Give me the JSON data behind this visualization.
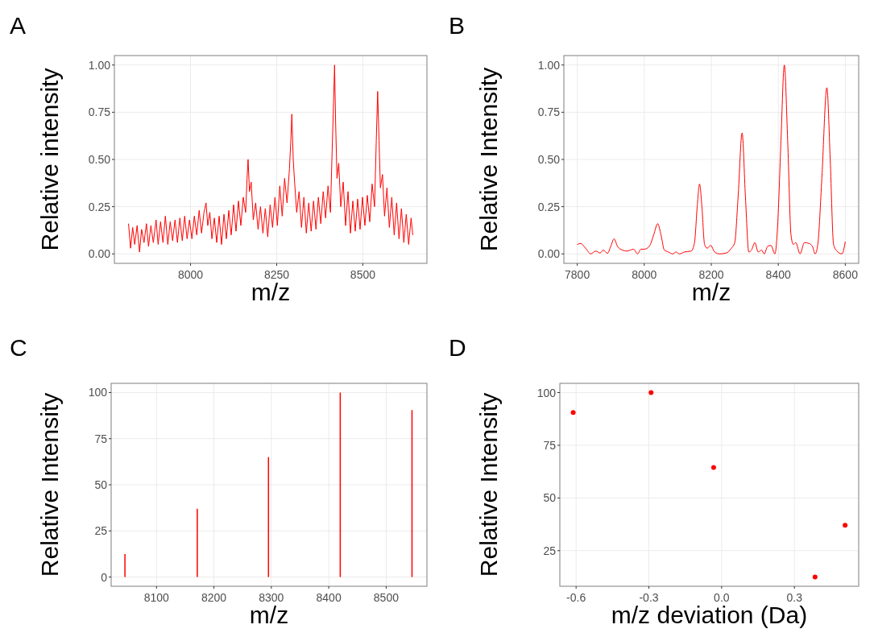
{
  "chart_data": [
    {
      "type": "line",
      "title": "A",
      "xlabel": "m/z",
      "ylabel": "Relative intensity",
      "grid": true,
      "xlim": [
        7779,
        8686
      ],
      "xticks": [
        8000,
        8250,
        8500
      ],
      "ylim": [
        -0.05,
        1.05
      ],
      "yticks": [
        {
          "value": 0,
          "label": "0.00"
        },
        {
          "value": 0.25,
          "label": "0.25"
        },
        {
          "value": 0.5,
          "label": "0.50"
        },
        {
          "value": 0.75,
          "label": "0.75"
        },
        {
          "value": 1,
          "label": "1.00"
        }
      ],
      "series": [
        {
          "color": "#ff0000",
          "x": [
            7820,
            7826,
            7832,
            7838,
            7845,
            7852,
            7858,
            7865,
            7872,
            7878,
            7885,
            7892,
            7900,
            7906,
            7913,
            7920,
            7927,
            7934,
            7941,
            7948,
            7955,
            7962,
            7969,
            7976,
            7983,
            7990,
            7997,
            8004,
            8011,
            8018,
            8025,
            8032,
            8039,
            8045,
            8050,
            8056,
            8062,
            8069,
            8076,
            8083,
            8090,
            8097,
            8104,
            8111,
            8118,
            8125,
            8132,
            8139,
            8146,
            8153,
            8160,
            8164,
            8167,
            8171,
            8176,
            8182,
            8189,
            8196,
            8203,
            8210,
            8217,
            8224,
            8231,
            8238,
            8245,
            8252,
            8259,
            8266,
            8273,
            8280,
            8287,
            8291,
            8294,
            8298,
            8302,
            8308,
            8315,
            8322,
            8329,
            8336,
            8343,
            8350,
            8357,
            8364,
            8371,
            8378,
            8385,
            8392,
            8399,
            8406,
            8411,
            8415,
            8418,
            8421,
            8425,
            8430,
            8436,
            8443,
            8450,
            8457,
            8464,
            8471,
            8478,
            8485,
            8492,
            8499,
            8506,
            8513,
            8520,
            8527,
            8534,
            8539,
            8543,
            8547,
            8551,
            8557,
            8563,
            8570,
            8577,
            8584,
            8591,
            8598,
            8605,
            8612,
            8619,
            8626,
            8633,
            8640,
            8645
          ],
          "values": [
            0.16,
            0.03,
            0.14,
            0.05,
            0.15,
            0.01,
            0.13,
            0.06,
            0.16,
            0.04,
            0.15,
            0.06,
            0.18,
            0.05,
            0.17,
            0.06,
            0.2,
            0.05,
            0.17,
            0.07,
            0.18,
            0.06,
            0.19,
            0.07,
            0.2,
            0.08,
            0.18,
            0.08,
            0.2,
            0.1,
            0.23,
            0.11,
            0.22,
            0.27,
            0.15,
            0.22,
            0.08,
            0.19,
            0.06,
            0.2,
            0.05,
            0.21,
            0.08,
            0.23,
            0.1,
            0.26,
            0.12,
            0.28,
            0.15,
            0.3,
            0.22,
            0.4,
            0.5,
            0.33,
            0.38,
            0.18,
            0.27,
            0.13,
            0.25,
            0.11,
            0.24,
            0.09,
            0.26,
            0.14,
            0.3,
            0.15,
            0.36,
            0.2,
            0.4,
            0.27,
            0.45,
            0.6,
            0.74,
            0.5,
            0.38,
            0.22,
            0.33,
            0.14,
            0.3,
            0.11,
            0.27,
            0.12,
            0.28,
            0.13,
            0.3,
            0.16,
            0.33,
            0.19,
            0.36,
            0.22,
            0.55,
            0.8,
            1.0,
            0.7,
            0.4,
            0.48,
            0.25,
            0.38,
            0.15,
            0.33,
            0.11,
            0.28,
            0.12,
            0.29,
            0.13,
            0.3,
            0.15,
            0.31,
            0.17,
            0.37,
            0.25,
            0.6,
            0.86,
            0.6,
            0.35,
            0.42,
            0.2,
            0.35,
            0.14,
            0.3,
            0.1,
            0.27,
            0.08,
            0.24,
            0.06,
            0.21,
            0.05,
            0.19,
            0.1
          ]
        }
      ]
    },
    {
      "type": "line",
      "title": "B",
      "xlabel": "m/z",
      "ylabel": "Relative Intensity",
      "grid": true,
      "xlim": [
        7760,
        8640
      ],
      "xticks": [
        7800,
        8000,
        8200,
        8400,
        8600
      ],
      "ylim": [
        -0.05,
        1.05
      ],
      "yticks": [
        {
          "value": 0,
          "label": "0.00"
        },
        {
          "value": 0.25,
          "label": "0.25"
        },
        {
          "value": 0.5,
          "label": "0.50"
        },
        {
          "value": 0.75,
          "label": "0.75"
        },
        {
          "value": 1,
          "label": "1.00"
        }
      ],
      "series": [
        {
          "color": "#ff0000",
          "x": [
            7800,
            7810,
            7825,
            7840,
            7855,
            7868,
            7878,
            7890,
            7900,
            7910,
            7920,
            7935,
            7948,
            7958,
            7968,
            7980,
            7990,
            8000,
            8015,
            8028,
            8040,
            8050,
            8060,
            8072,
            8085,
            8095,
            8105,
            8120,
            8140,
            8150,
            8158,
            8165,
            8172,
            8180,
            8188,
            8198,
            8210,
            8225,
            8245,
            8260,
            8270,
            8280,
            8292,
            8302,
            8312,
            8320,
            8330,
            8340,
            8350,
            8358,
            8368,
            8378,
            8390,
            8398,
            8408,
            8418,
            8428,
            8438,
            8445,
            8452,
            8465,
            8478,
            8492,
            8502,
            8510,
            8518,
            8530,
            8545,
            8555,
            8565,
            8575,
            8590,
            8600
          ],
          "values": [
            0.05,
            0.055,
            0.03,
            0.0,
            0.015,
            0.005,
            0.02,
            0.003,
            0.04,
            0.08,
            0.04,
            0.02,
            0.015,
            0.02,
            0.025,
            0.0,
            0.025,
            0.025,
            0.04,
            0.1,
            0.16,
            0.1,
            0.02,
            0.01,
            0.0,
            0.01,
            0.0,
            0.01,
            0.015,
            0.06,
            0.25,
            0.37,
            0.25,
            0.05,
            0.03,
            0.045,
            0.01,
            0.0,
            0.005,
            0.03,
            0.06,
            0.3,
            0.64,
            0.3,
            0.01,
            0.02,
            0.06,
            0.01,
            0.02,
            0.0,
            0.04,
            0.045,
            0.0,
            0.15,
            0.6,
            1.0,
            0.6,
            0.1,
            0.05,
            0.06,
            0.0,
            0.06,
            0.055,
            0.04,
            0.0,
            0.05,
            0.4,
            0.88,
            0.5,
            0.05,
            0.015,
            0.0,
            0.065
          ]
        }
      ]
    },
    {
      "type": "bar",
      "title": "C",
      "xlabel": "m/z",
      "ylabel": "Relative Intensity",
      "grid": true,
      "xlim": [
        8021,
        8571
      ],
      "xticks": [
        8100,
        8200,
        8300,
        8400,
        8500
      ],
      "ylim": [
        -5,
        105
      ],
      "yticks": [
        0,
        25,
        50,
        75,
        100
      ],
      "series": [
        {
          "color": "#ff0000",
          "x": [
            8045,
            8171,
            8295,
            8420,
            8545
          ],
          "values": [
            12.5,
            37,
            65,
            100,
            90.5
          ]
        }
      ]
    },
    {
      "type": "scatter",
      "title": "D",
      "xlabel": "m/z deviation (Da)",
      "ylabel": "Relative Intensity",
      "grid": true,
      "marker": "circle",
      "xlim": [
        -0.667,
        0.565
      ],
      "xticks": [
        -0.6,
        -0.3,
        {
          "value": 0,
          "label": "0.0"
        },
        0.3
      ],
      "ylim": [
        8.1,
        104.4
      ],
      "yticks": [
        25,
        50,
        75,
        100
      ],
      "series": [
        {
          "color": "#ff0000",
          "x": [
            -0.612,
            -0.291,
            -0.033,
            0.385,
            0.509
          ],
          "values": [
            90.5,
            100,
            64.5,
            12.5,
            37
          ]
        }
      ]
    }
  ]
}
